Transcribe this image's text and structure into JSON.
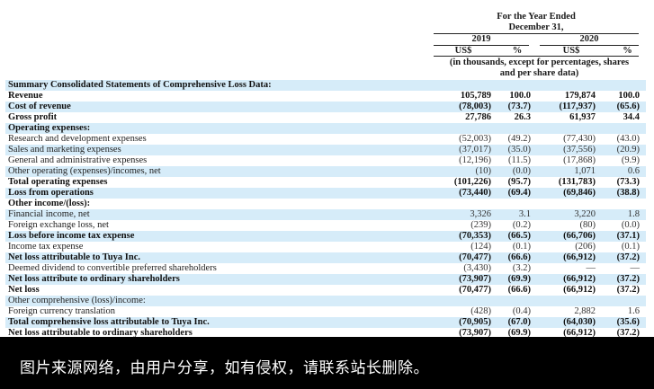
{
  "header": {
    "period_line1": "For the Year Ended",
    "period_line2": "December 31,",
    "years": [
      "2019",
      "2020"
    ],
    "currency_labels": [
      "US$",
      "%",
      "US$",
      "%"
    ],
    "units_line1": "(in thousands, except for percentages, shares",
    "units_line2": "and per share data)"
  },
  "table": {
    "rows": [
      {
        "label": "Summary Consolidated Statements of Comprehensive Loss Data:",
        "bold": true,
        "v2019": "",
        "p2019": "",
        "v2020": "",
        "p2020": ""
      },
      {
        "label": "Revenue",
        "bold": true,
        "v2019": "105,789",
        "p2019": "100.0",
        "v2020": "179,874",
        "p2020": "100.0"
      },
      {
        "label": "Cost of revenue",
        "bold": true,
        "v2019": "(78,003)",
        "p2019": "(73.7)",
        "v2020": "(117,937)",
        "p2020": "(65.6)"
      },
      {
        "label": "Gross profit",
        "bold": true,
        "v2019": "27,786",
        "p2019": "26.3",
        "v2020": "61,937",
        "p2020": "34.4"
      },
      {
        "label": "Operating expenses:",
        "bold": true,
        "v2019": "",
        "p2019": "",
        "v2020": "",
        "p2020": ""
      },
      {
        "label": "Research and development expenses",
        "bold": false,
        "v2019": "(52,003)",
        "p2019": "(49.2)",
        "v2020": "(77,430)",
        "p2020": "(43.0)"
      },
      {
        "label": "Sales and marketing expenses",
        "bold": false,
        "v2019": "(37,017)",
        "p2019": "(35.0)",
        "v2020": "(37,556)",
        "p2020": "(20.9)"
      },
      {
        "label": "General and administrative expenses",
        "bold": false,
        "v2019": "(12,196)",
        "p2019": "(11.5)",
        "v2020": "(17,868)",
        "p2020": "(9.9)"
      },
      {
        "label": "Other operating (expenses)/incomes, net",
        "bold": false,
        "v2019": "(10)",
        "p2019": "(0.0)",
        "v2020": "1,071",
        "p2020": "0.6"
      },
      {
        "label": "Total operating expenses",
        "bold": true,
        "v2019": "(101,226)",
        "p2019": "(95.7)",
        "v2020": "(131,783)",
        "p2020": "(73.3)"
      },
      {
        "label": "Loss from operations",
        "bold": true,
        "v2019": "(73,440)",
        "p2019": "(69.4)",
        "v2020": "(69,846)",
        "p2020": "(38.8)"
      },
      {
        "label": "Other income/(loss):",
        "bold": true,
        "v2019": "",
        "p2019": "",
        "v2020": "",
        "p2020": ""
      },
      {
        "label": "Financial income, net",
        "bold": false,
        "v2019": "3,326",
        "p2019": "3.1",
        "v2020": "3,220",
        "p2020": "1.8"
      },
      {
        "label": "Foreign exchange loss, net",
        "bold": false,
        "v2019": "(239)",
        "p2019": "(0.2)",
        "v2020": "(80)",
        "p2020": "(0.0)"
      },
      {
        "label": "Loss before income tax expense",
        "bold": true,
        "v2019": "(70,353)",
        "p2019": "(66.5)",
        "v2020": "(66,706)",
        "p2020": "(37.1)"
      },
      {
        "label": "Income tax expense",
        "bold": false,
        "v2019": "(124)",
        "p2019": "(0.1)",
        "v2020": "(206)",
        "p2020": "(0.1)"
      },
      {
        "label": "Net loss attributable to Tuya Inc.",
        "bold": true,
        "v2019": "(70,477)",
        "p2019": "(66.6)",
        "v2020": "(66,912)",
        "p2020": "(37.2)"
      },
      {
        "label": "Deemed dividend to convertible preferred shareholders",
        "bold": false,
        "v2019": "(3,430)",
        "p2019": "(3.2)",
        "v2020": "—",
        "p2020": "—"
      },
      {
        "label": "Net loss attribute to ordinary shareholders",
        "bold": true,
        "v2019": "(73,907)",
        "p2019": "(69.9)",
        "v2020": "(66,912)",
        "p2020": "(37.2)"
      },
      {
        "label": "Net loss",
        "bold": true,
        "v2019": "(70,477)",
        "p2019": "(66.6)",
        "v2020": "(66,912)",
        "p2020": "(37.2)"
      },
      {
        "label": "Other comprehensive (loss)/income:",
        "bold": false,
        "v2019": "",
        "p2019": "",
        "v2020": "",
        "p2020": ""
      },
      {
        "label": "Foreign currency translation",
        "bold": false,
        "v2019": "(428)",
        "p2019": "(0.4)",
        "v2020": "2,882",
        "p2020": "1.6"
      },
      {
        "label": "Total comprehensive loss attributable to Tuya Inc.",
        "bold": true,
        "v2019": "(70,905)",
        "p2019": "(67.0)",
        "v2020": "(64,030)",
        "p2020": "(35.6)"
      },
      {
        "label": "Net loss attributable to ordinary shareholders",
        "bold": true,
        "v2019": "(73,907)",
        "p2019": "(69.9)",
        "v2020": "(66,912)",
        "p2020": "(37.2)"
      }
    ]
  },
  "footer": {
    "watermark_text": "图片来源网络，由用户分享，如有侵权，请联系站长删除。"
  }
}
